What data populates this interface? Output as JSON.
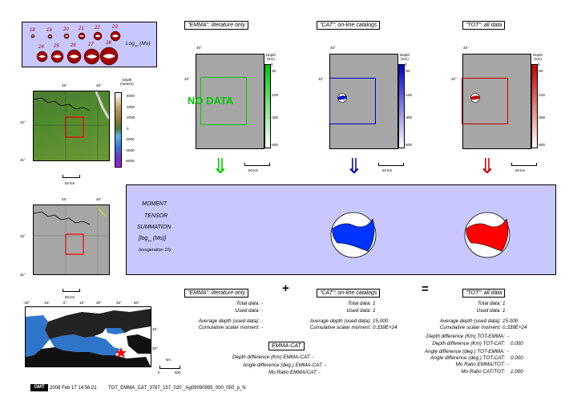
{
  "mag_legend": {
    "row1": [
      "18",
      "19",
      "20",
      "21",
      "22",
      "23"
    ],
    "row2": [
      "24",
      "25",
      "26",
      "27",
      "28"
    ],
    "label": "Log",
    "label_sub": "10",
    "label_suffix": " (Mo)"
  },
  "columns": [
    {
      "title": "\"EMMA\": literature only",
      "lon": "45°",
      "lat": "32°",
      "scale": "50 km",
      "nodata": "NO DATA",
      "depth_label": "Depth\n(Km)",
      "depth_ticks": [
        "0",
        "-50",
        "-100",
        "-150",
        "-300",
        "-600"
      ],
      "color": "#00c800",
      "arrow": "⇓"
    },
    {
      "title": "\"CAT\": on-line catalogs",
      "lon": "45°",
      "lat": "32°",
      "scale": "50 km",
      "depth_label": "Depth\n(Km)",
      "depth_ticks": [
        "0",
        "-50",
        "-100",
        "-150",
        "-300",
        "-600"
      ],
      "color": "#0000c8",
      "arrow": "⇓"
    },
    {
      "title": "\"TOT\": all data",
      "lon": "45°",
      "lat": "32°",
      "scale": "50 km",
      "depth_label": "Depth\n(Km)",
      "depth_ticks": [
        "0",
        "-50",
        "-100",
        "-150",
        "-300",
        "-600"
      ],
      "color": "#c80000",
      "arrow": "⇓"
    }
  ],
  "topo": {
    "lon_left": "45°",
    "lon_right": "46°",
    "lat_top": "32°",
    "lat_bottom": "31°",
    "scale": "50 km",
    "depth_label": "Depth\n(meters)",
    "ticks": [
      "6000",
      "4000",
      "2000",
      "0",
      "-2000",
      "-4000",
      "-6000"
    ]
  },
  "grey_map": {
    "lon_left": "45°",
    "lon_right": "46°",
    "lat_top": "32°",
    "lat_bottom": "31°",
    "scale": "50 km"
  },
  "region_map": {
    "lon_ticks": [
      "-30°",
      "-15°",
      "0°",
      "15°",
      "30°",
      "45°",
      "60°"
    ],
    "lat_ticks": [
      "45°",
      "30°"
    ],
    "scale_label": "km",
    "scale_ticks": [
      "0",
      "500"
    ]
  },
  "summation": {
    "line1": "MOMENT",
    "line2": "TENSOR",
    "line3": "SUMMATION",
    "line4a": "[log",
    "line4sub": "10",
    "line4b": " (Mo)]",
    "line5": "(exageration 10)"
  },
  "stats": {
    "emma_title": "\"EMMA\": literature only",
    "cat_title": "\"CAT\": on-line catalogs",
    "tot_title": "\"TOT\": all data",
    "plus": "+",
    "equals": "=",
    "labels": [
      "Total data:",
      "Used data:",
      "Average depth (used data):",
      "Cumulative scalar moment:"
    ],
    "emma_vals": [
      "-",
      "-",
      "-",
      "-"
    ],
    "cat_vals": [
      "1",
      "1",
      "15.000",
      "0.339E+24"
    ],
    "tot_vals": [
      "1",
      "1",
      "15.000",
      "0.339E+24"
    ],
    "emma_cat_title": "EMMA-CAT",
    "emma_cat_lines": [
      "Depth difference (Km) EMMA-CAT: -",
      "Angle difference (deg.) EMMA-CAT: -",
      "Mo Ratio EMMA/CAT: -"
    ],
    "tot_extra_labels": [
      "Depth difference (Km) TOT-EMMA:",
      "Depth difference (Km) TOT-CAT:",
      "Angle difference (deg.) TOT-EMMA:",
      "Angle difference (deg.) TOT-CAT:",
      "Mo Ratio EMMA/TOT:",
      "Mo Ratio CAT/TOT:"
    ],
    "tot_extra_vals": [
      "-",
      "0.000",
      "-",
      "0.000",
      "-",
      "1.000"
    ]
  },
  "footer": {
    "logo": "GMT",
    "timestamp": "2008 Feb 17 14:56:21",
    "filename": "TOT_EMMA_CAT_3767_157_020 _Ag09090995_000_050_p_N"
  }
}
